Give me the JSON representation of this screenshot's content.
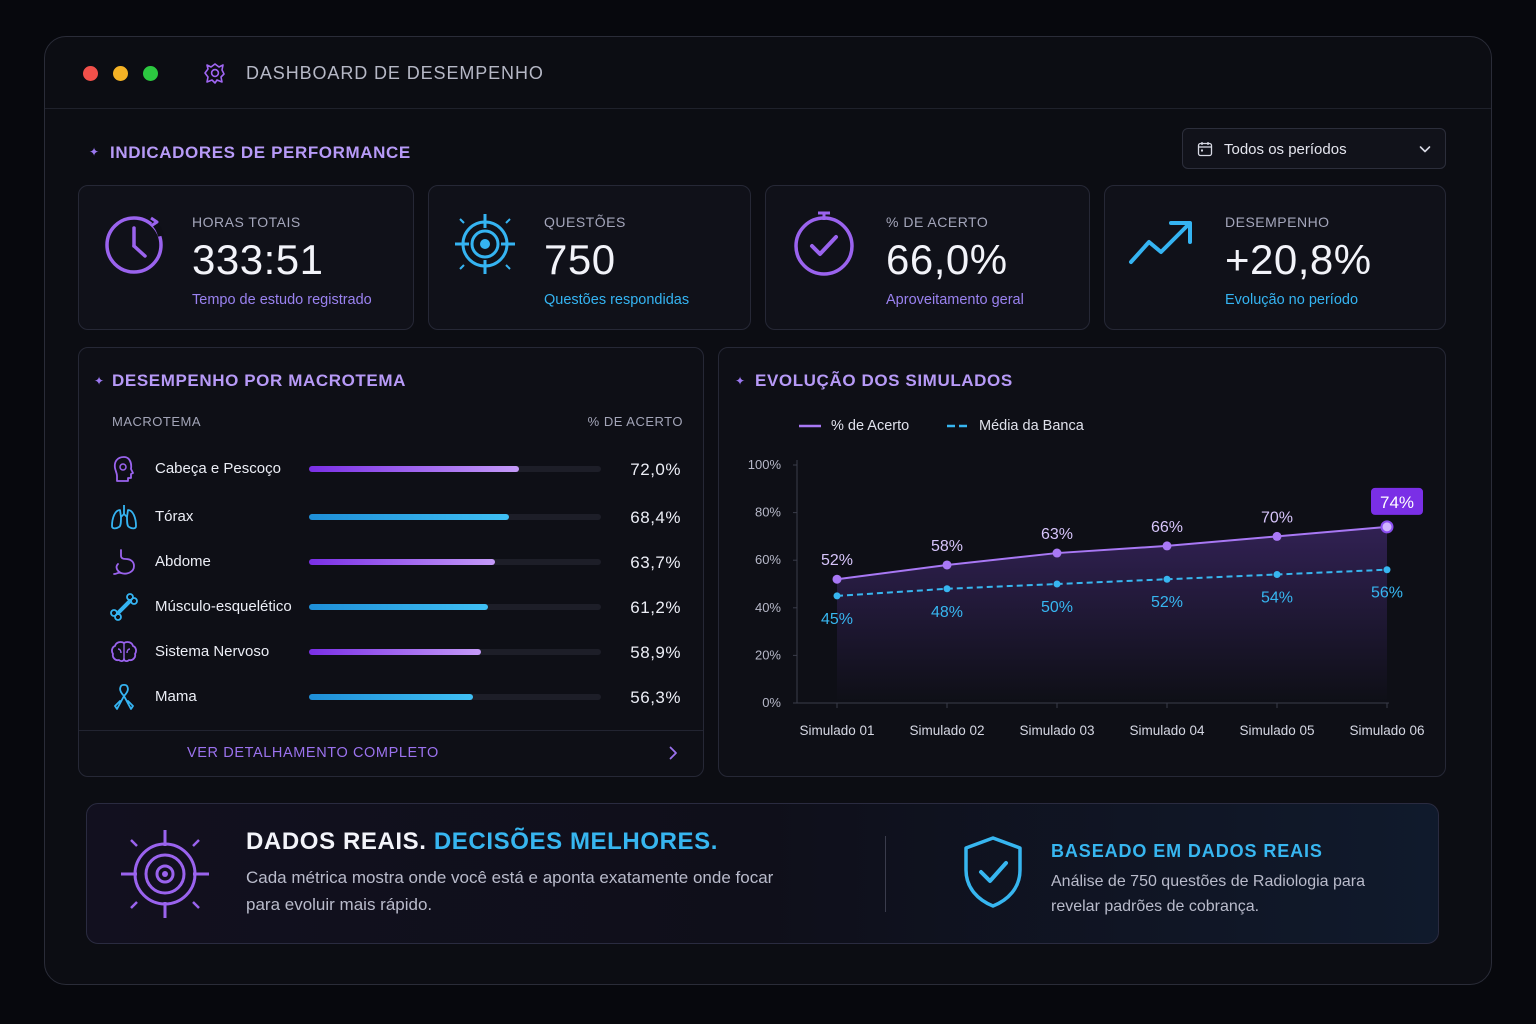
{
  "window": {
    "title": "DASHBOARD DE DESEMPENHO",
    "icon": "dashboard-logo-icon"
  },
  "indicators": {
    "title": "INDICADORES DE PERFORMANCE",
    "period_select": {
      "value": "Todos os períodos",
      "icon": "calendar-icon"
    },
    "cards": [
      {
        "label": "HORAS TOTAIS",
        "value": "333:51",
        "sub": "Tempo de estudo registrado",
        "icon": "clock-icon",
        "accent": "#9a63ee"
      },
      {
        "label": "QUESTÕES",
        "value": "750",
        "sub": "Questões respondidas",
        "icon": "target-icon",
        "accent": "#35b4f2"
      },
      {
        "label": "% DE ACERTO",
        "value": "66,0%",
        "sub": "Aproveitamento geral",
        "icon": "check-circle-icon",
        "accent": "#9a63ee"
      },
      {
        "label": "DESEMPENHO",
        "value": "+20,8%",
        "sub": "Evolução no período",
        "icon": "trend-up-icon",
        "accent": "#35b4f2"
      }
    ]
  },
  "macrotema": {
    "title": "DESEMPENHO POR MACROTEMA",
    "col_name": "MACROTEMA",
    "col_value": "% DE ACERTO",
    "rows": [
      {
        "name": "Cabeça e Pescoço",
        "value": "72,0%",
        "pct": 72.0,
        "icon": "head-icon",
        "color": "#8e45ea"
      },
      {
        "name": "Tórax",
        "value": "68,4%",
        "pct": 68.4,
        "icon": "lungs-icon",
        "color": "#2aa6e8"
      },
      {
        "name": "Abdome",
        "value": "63,7%",
        "pct": 63.7,
        "icon": "stomach-icon",
        "color": "#8e45ea"
      },
      {
        "name": "Músculo-esquelético",
        "value": "61,2%",
        "pct": 61.2,
        "icon": "bone-icon",
        "color": "#2aa6e8"
      },
      {
        "name": "Sistema Nervoso",
        "value": "58,9%",
        "pct": 58.9,
        "icon": "brain-icon",
        "color": "#8e45ea"
      },
      {
        "name": "Mama",
        "value": "56,3%",
        "pct": 56.3,
        "icon": "ribbon-icon",
        "color": "#2aa6e8"
      }
    ],
    "footer_link": "VER DETALHAMENTO COMPLETO"
  },
  "simulados": {
    "title": "EVOLUÇÃO DOS SIMULADOS",
    "legend": [
      "% de Acerto",
      "Média da Banca"
    ]
  },
  "chart_data": {
    "type": "line",
    "categories": [
      "Simulado 01",
      "Simulado 02",
      "Simulado 03",
      "Simulado 04",
      "Simulado 05",
      "Simulado 06"
    ],
    "series": [
      {
        "name": "% de Acerto",
        "values": [
          52,
          58,
          63,
          66,
          70,
          74
        ],
        "labels": [
          "52%",
          "58%",
          "63%",
          "66%",
          "70%",
          "74%"
        ],
        "color": "#a878f5"
      },
      {
        "name": "Média da Banca",
        "values": [
          45,
          48,
          50,
          52,
          54,
          56
        ],
        "labels": [
          "45%",
          "48%",
          "50%",
          "52%",
          "54%",
          "56%"
        ],
        "color": "#37b6f0",
        "dashed": true
      }
    ],
    "yticks": [
      "0%",
      "20%",
      "40%",
      "60%",
      "80%",
      "100%"
    ],
    "ylim": [
      0,
      100
    ],
    "grid": false,
    "legend_position": "top-left"
  },
  "banner": {
    "headline_part1": "DADOS REAIS.",
    "headline_part2": "DECISÕES MELHORES.",
    "description": "Cada métrica mostra onde você está e aponta exatamente onde focar para evoluir mais rápido.",
    "right_title": "BASEADO EM DADOS REAIS",
    "right_description": "Análise de 750 questões de Radiologia para revelar padrões de cobrança.",
    "icons": [
      "crosshair-target-icon",
      "shield-check-icon"
    ]
  },
  "colors": {
    "purple": "#9a63ee",
    "cyan": "#35b4f2",
    "background": "#07080d"
  }
}
